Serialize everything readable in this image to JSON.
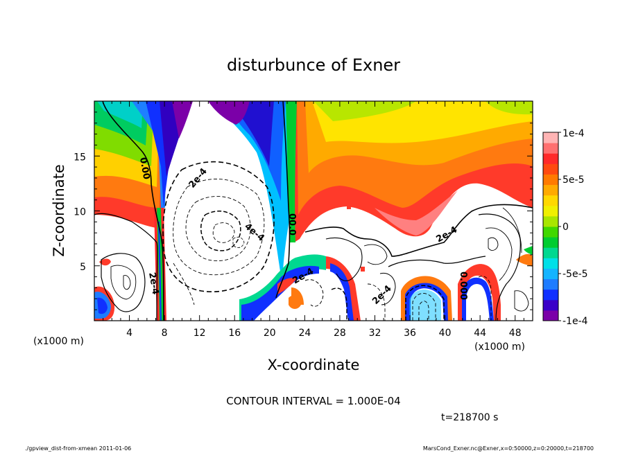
{
  "chart_data": {
    "type": "heatmap",
    "title": "disturbunce of Exner",
    "xlabel": "X-coordinate",
    "ylabel": "Z-coordinate",
    "x_unit": "(x1000 m)",
    "y_unit": "(x1000 m)",
    "xlim": [
      0,
      50
    ],
    "ylim": [
      0,
      20
    ],
    "x_ticks": [
      "4",
      "8",
      "12",
      "16",
      "20",
      "24",
      "28",
      "32",
      "36",
      "40",
      "44",
      "48"
    ],
    "x_tick_values": [
      4,
      8,
      12,
      16,
      20,
      24,
      28,
      32,
      36,
      40,
      44,
      48
    ],
    "y_ticks": [
      "5",
      "10",
      "15"
    ],
    "y_tick_values": [
      5,
      10,
      15
    ],
    "colorbar": {
      "labels": [
        "1e-4",
        "5e-5",
        "0",
        "-5e-5",
        "-1e-4"
      ],
      "values": [
        0.0001,
        5e-05,
        0,
        -5e-05,
        -0.0001
      ],
      "range": [
        -0.0001,
        0.0001
      ],
      "colors": [
        "#7b00a8",
        "#3a00c8",
        "#1030ff",
        "#1e7cff",
        "#14b4ff",
        "#00e0e8",
        "#00d890",
        "#00cc30",
        "#40d800",
        "#a8e600",
        "#f0f000",
        "#ffd800",
        "#ffaa00",
        "#ff7a00",
        "#ff4a10",
        "#ff2a2a",
        "#ff7070",
        "#ffb4b4"
      ]
    },
    "contour_labels": [
      "0.00",
      "2e-4",
      "4e-4",
      "2e-4",
      "00.0",
      "2e-4",
      "2e-4",
      "2e-4",
      "0.000"
    ],
    "contour_interval_text": "CONTOUR INTERVAL = 1.000E-04",
    "time_text": "t=218700 s",
    "colormap_note": "rainbow, purple (negative) to pink (positive); white where |value| exceeds range"
  },
  "footer": {
    "left": "./gpview_dist-from-xmean  2011-01-06",
    "right": "MarsCond_Exner.nc@Exner,x=0:50000,z=0:20000,t=218700"
  }
}
